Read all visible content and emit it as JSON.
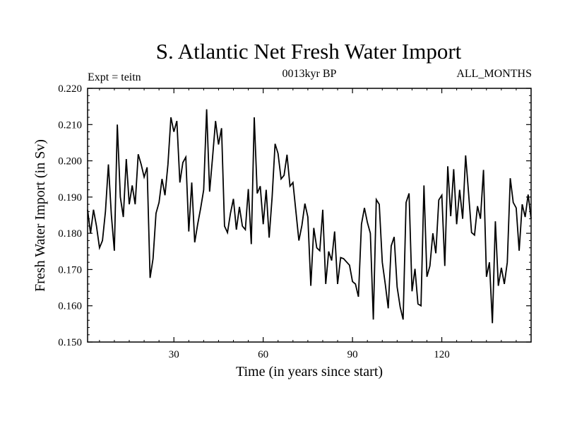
{
  "chart_data": {
    "type": "line",
    "title": "S. Atlantic Net Fresh Water Import",
    "subtitle_left": "Expt = teitn",
    "subtitle_center": "0013kyr BP",
    "subtitle_right": "ALL_MONTHS",
    "xlabel": "Time (in years since start)",
    "ylabel": "Fresh Water Import (in Sv)",
    "xlim": [
      1,
      150
    ],
    "ylim": [
      0.15,
      0.22
    ],
    "xticks": [
      30,
      60,
      90,
      120
    ],
    "xtick_labels": [
      "30",
      "60",
      "90",
      "120"
    ],
    "yticks": [
      0.15,
      0.16,
      0.17,
      0.18,
      0.19,
      0.2,
      0.21,
      0.22
    ],
    "ytick_labels": [
      "0.150",
      "0.160",
      "0.170",
      "0.180",
      "0.190",
      "0.200",
      "0.210",
      "0.220"
    ],
    "series": [
      {
        "name": "Net Fresh Water Import",
        "x": [
          1,
          2,
          3,
          4,
          5,
          6,
          7,
          8,
          9,
          10,
          11,
          12,
          13,
          14,
          15,
          16,
          17,
          18,
          19,
          20,
          21,
          22,
          23,
          24,
          25,
          26,
          27,
          28,
          29,
          30,
          31,
          32,
          33,
          34,
          35,
          36,
          37,
          38,
          39,
          40,
          41,
          42,
          43,
          44,
          45,
          46,
          47,
          48,
          49,
          50,
          51,
          52,
          53,
          54,
          55,
          56,
          57,
          58,
          59,
          60,
          61,
          62,
          63,
          64,
          65,
          66,
          67,
          68,
          69,
          70,
          71,
          72,
          73,
          74,
          75,
          76,
          77,
          78,
          79,
          80,
          81,
          82,
          83,
          84,
          85,
          86,
          87,
          88,
          89,
          90,
          91,
          92,
          93,
          94,
          95,
          96,
          97,
          98,
          99,
          100,
          101,
          102,
          103,
          104,
          105,
          106,
          107,
          108,
          109,
          110,
          111,
          112,
          113,
          114,
          115,
          116,
          117,
          118,
          119,
          120,
          121,
          122,
          123,
          124,
          125,
          126,
          127,
          128,
          129,
          130,
          131,
          132,
          133,
          134,
          135,
          136,
          137,
          138,
          139,
          140,
          141,
          142,
          143,
          144,
          145,
          146,
          147,
          148,
          149,
          150
        ],
        "values": [
          0.1865,
          0.18,
          0.1865,
          0.182,
          0.176,
          0.178,
          0.186,
          0.199,
          0.185,
          0.1752,
          0.21,
          0.19,
          0.1845,
          0.2005,
          0.188,
          0.1932,
          0.188,
          0.2018,
          0.199,
          0.1955,
          0.1982,
          0.1677,
          0.173,
          0.1855,
          0.1885,
          0.195,
          0.1905,
          0.199,
          0.212,
          0.208,
          0.211,
          0.194,
          0.1995,
          0.201,
          0.1805,
          0.194,
          0.1775,
          0.1825,
          0.187,
          0.192,
          0.2142,
          0.1915,
          0.201,
          0.211,
          0.2045,
          0.209,
          0.182,
          0.1802,
          0.1855,
          0.1895,
          0.181,
          0.1873,
          0.182,
          0.181,
          0.1922,
          0.177,
          0.212,
          0.191,
          0.193,
          0.1825,
          0.192,
          0.1788,
          0.19,
          0.2047,
          0.202,
          0.195,
          0.196,
          0.2017,
          0.193,
          0.194,
          0.186,
          0.178,
          0.1822,
          0.1882,
          0.1845,
          0.1655,
          0.1815,
          0.176,
          0.1752,
          0.1865,
          0.166,
          0.175,
          0.1725,
          0.1805,
          0.166,
          0.1733,
          0.173,
          0.1721,
          0.1712,
          0.1667,
          0.166,
          0.1625,
          0.1825,
          0.187,
          0.183,
          0.18,
          0.1562,
          0.1893,
          0.188,
          0.172,
          0.166,
          0.1593,
          0.1765,
          0.179,
          0.1652,
          0.1597,
          0.1562,
          0.1885,
          0.191,
          0.164,
          0.1702,
          0.1605,
          0.16,
          0.1932,
          0.168,
          0.171,
          0.18,
          0.1745,
          0.1892,
          0.1905,
          0.171,
          0.1985,
          0.1847,
          0.1977,
          0.1825,
          0.192,
          0.184,
          0.2015,
          0.191,
          0.1802,
          0.1795,
          0.1875,
          0.184,
          0.1975,
          0.168,
          0.172,
          0.1552,
          0.1833,
          0.1655,
          0.1705,
          0.166,
          0.172,
          0.1952,
          0.1885,
          0.187,
          0.1752,
          0.188,
          0.1845,
          0.1907,
          0.184
        ]
      }
    ]
  }
}
